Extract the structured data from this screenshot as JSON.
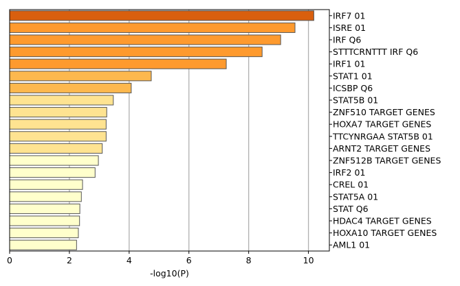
{
  "chart_data": {
    "type": "bar",
    "orientation": "horizontal",
    "title": "",
    "xlabel": "-log10(P)",
    "ylabel": "",
    "xlim": [
      0,
      10.7
    ],
    "xticks": [
      0,
      2,
      4,
      6,
      8,
      10
    ],
    "grid": "vertical",
    "category_axis_side": "right",
    "categories": [
      "IRF7 01",
      "ISRE 01",
      "IRF Q6",
      "STTTCRNTTT IRF Q6",
      "IRF1 01",
      "STAT1 01",
      "ICSBP Q6",
      "STAT5B 01",
      "ZNF510 TARGET GENES",
      "HOXA7 TARGET GENES",
      "TTCYNRGAA STAT5B 01",
      "ARNT2 TARGET GENES",
      "ZNF512B TARGET GENES",
      "IRF2 01",
      "CREL 01",
      "STAT5A 01",
      "STAT Q6",
      "HDAC4 TARGET GENES",
      "HOXA10 TARGET GENES",
      "AML1 01"
    ],
    "values": [
      10.18,
      9.55,
      9.07,
      8.45,
      7.25,
      4.74,
      4.07,
      3.47,
      3.25,
      3.23,
      3.23,
      3.1,
      2.97,
      2.86,
      2.44,
      2.4,
      2.35,
      2.34,
      2.3,
      2.24
    ],
    "colors": [
      "#d95f0e",
      "#fe9a2e",
      "#fe9a2e",
      "#fe9a2e",
      "#fe9a2e",
      "#fdb84e",
      "#fdb84e",
      "#fee391",
      "#fee391",
      "#fee391",
      "#fee391",
      "#fee391",
      "#ffffcc",
      "#ffffcc",
      "#ffffcc",
      "#ffffcc",
      "#ffffcc",
      "#ffffcc",
      "#ffffcc",
      "#ffffcc"
    ],
    "edge_color": "#555555",
    "grid_color": "#b0b0b0"
  }
}
